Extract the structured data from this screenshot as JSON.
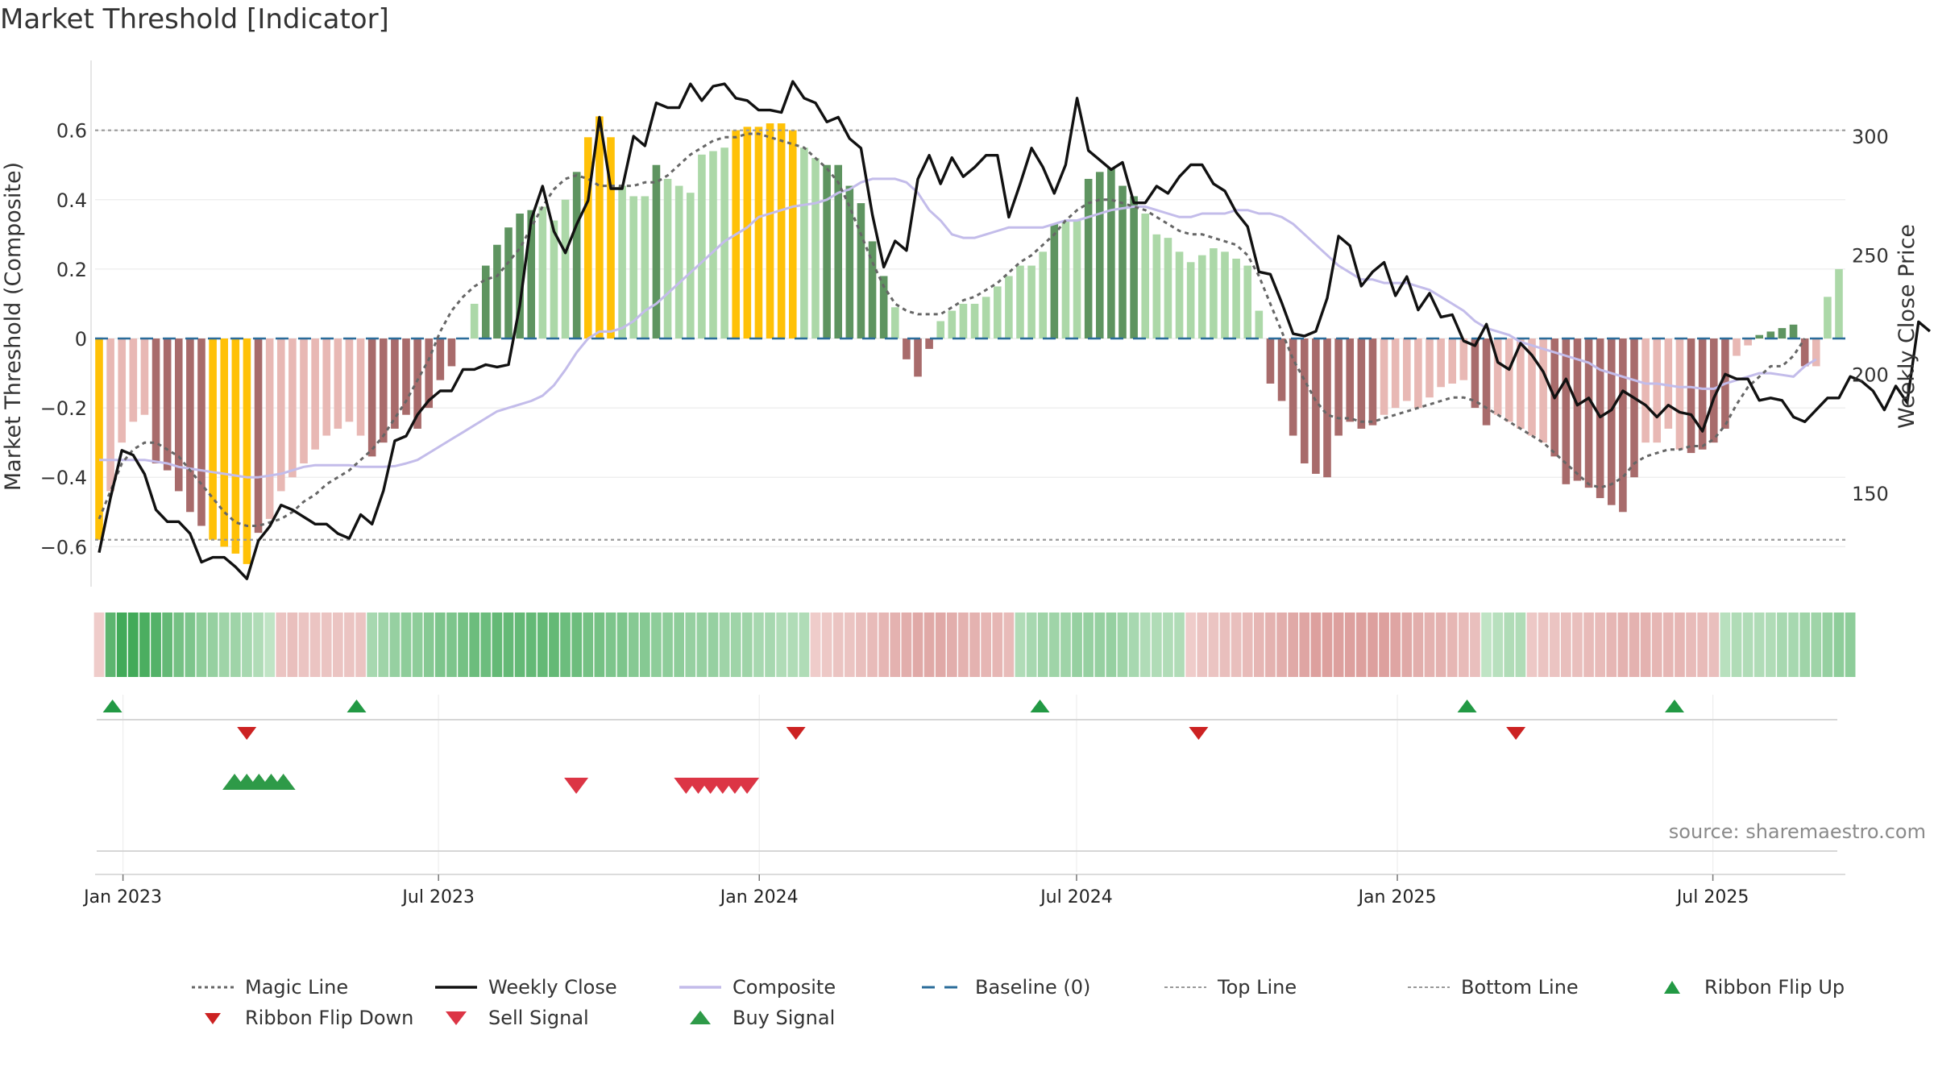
{
  "title": "Market Threshold [Indicator]",
  "source": "source: sharemaestro.com",
  "colors": {
    "neg_dark": "#a86b6b",
    "neg_light": "#e8b8b4",
    "pos_dark": "#5e9460",
    "pos_light": "#acd8a8",
    "extreme": "#ffc107",
    "close": "#111111",
    "composite": "#c3bcea",
    "magic": "#666666",
    "baseline": "#2a6c9a",
    "threshold": "#999999",
    "buy": "#2e9a48",
    "sell": "#dc3545",
    "flip_up": "#229944",
    "flip_down": "#cc2222"
  },
  "chart_data": {
    "type": "bar",
    "title": "Market Threshold [Indicator]",
    "ylabel": "Market Threshold (Composite)",
    "y2label": "Weekly Close Price",
    "ylim": [
      -0.72,
      0.72
    ],
    "y2lim": [
      110,
      320
    ],
    "yticks": [
      0.6,
      0.4,
      0.2,
      0,
      -0.2,
      -0.4,
      -0.6
    ],
    "ytick_labels": [
      "0.6",
      "0.4",
      "0.2",
      "0",
      "−0.2",
      "−0.4",
      "−0.6"
    ],
    "y2ticks": [
      300,
      250,
      200,
      150
    ],
    "x_range": [
      "2022-12-16",
      "2025-09-15"
    ],
    "xticks": [
      {
        "date": "2023-01-01",
        "label": "Jan 2023"
      },
      {
        "date": "2023-07-01",
        "label": "Jul 2023"
      },
      {
        "date": "2024-01-01",
        "label": "Jan 2024"
      },
      {
        "date": "2024-07-01",
        "label": "Jul 2024"
      },
      {
        "date": "2025-01-01",
        "label": "Jan 2025"
      },
      {
        "date": "2025-07-01",
        "label": "Jul 2025"
      }
    ],
    "top_line": 0.6,
    "bottom_line": -0.58,
    "baseline": 0,
    "composite_bars": [
      -0.58,
      -0.44,
      -0.3,
      -0.24,
      -0.22,
      -0.36,
      -0.38,
      -0.44,
      -0.5,
      -0.54,
      -0.58,
      -0.6,
      -0.62,
      -0.65,
      -0.56,
      -0.52,
      -0.44,
      -0.4,
      -0.36,
      -0.32,
      -0.28,
      -0.26,
      -0.24,
      -0.28,
      -0.34,
      -0.3,
      -0.26,
      -0.22,
      -0.26,
      -0.2,
      -0.12,
      -0.08,
      0.0,
      0.1,
      0.21,
      0.27,
      0.32,
      0.36,
      0.37,
      0.38,
      0.34,
      0.4,
      0.48,
      0.58,
      0.64,
      0.58,
      0.44,
      0.41,
      0.41,
      0.5,
      0.46,
      0.44,
      0.42,
      0.53,
      0.54,
      0.55,
      0.6,
      0.61,
      0.61,
      0.62,
      0.62,
      0.6,
      0.55,
      0.52,
      0.5,
      0.5,
      0.44,
      0.39,
      0.28,
      0.18,
      0.09,
      -0.06,
      -0.11,
      -0.03,
      0.05,
      0.08,
      0.1,
      0.1,
      0.12,
      0.15,
      0.18,
      0.21,
      0.21,
      0.25,
      0.33,
      0.34,
      0.34,
      0.46,
      0.48,
      0.49,
      0.44,
      0.41,
      0.36,
      0.3,
      0.29,
      0.25,
      0.22,
      0.24,
      0.26,
      0.25,
      0.23,
      0.21,
      0.08,
      -0.13,
      -0.18,
      -0.28,
      -0.36,
      -0.39,
      -0.4,
      -0.28,
      -0.24,
      -0.26,
      -0.25,
      -0.22,
      -0.2,
      -0.18,
      -0.2,
      -0.17,
      -0.14,
      -0.13,
      -0.12,
      -0.2,
      -0.25,
      -0.22,
      -0.24,
      -0.26,
      -0.28,
      -0.3,
      -0.34,
      -0.42,
      -0.41,
      -0.43,
      -0.46,
      -0.48,
      -0.5,
      -0.4,
      -0.3,
      -0.3,
      -0.26,
      -0.32,
      -0.33,
      -0.32,
      -0.3,
      -0.26,
      -0.05,
      -0.02,
      0.01,
      0.02,
      0.03,
      0.04,
      -0.08,
      -0.08,
      0.12,
      0.2
    ],
    "composite_line": [
      -0.35,
      -0.35,
      -0.35,
      -0.35,
      -0.35,
      -0.355,
      -0.36,
      -0.37,
      -0.375,
      -0.38,
      -0.385,
      -0.39,
      -0.395,
      -0.4,
      -0.4,
      -0.395,
      -0.39,
      -0.38,
      -0.37,
      -0.365,
      -0.365,
      -0.365,
      -0.365,
      -0.37,
      -0.37,
      -0.37,
      -0.368,
      -0.36,
      -0.35,
      -0.33,
      -0.31,
      -0.29,
      -0.27,
      -0.25,
      -0.23,
      -0.21,
      -0.2,
      -0.19,
      -0.18,
      -0.165,
      -0.135,
      -0.09,
      -0.04,
      0.0,
      0.02,
      0.02,
      0.03,
      0.05,
      0.08,
      0.1,
      0.13,
      0.16,
      0.19,
      0.22,
      0.25,
      0.28,
      0.3,
      0.32,
      0.35,
      0.36,
      0.37,
      0.38,
      0.385,
      0.39,
      0.4,
      0.42,
      0.43,
      0.45,
      0.46,
      0.46,
      0.46,
      0.45,
      0.42,
      0.37,
      0.34,
      0.3,
      0.29,
      0.29,
      0.3,
      0.31,
      0.32,
      0.32,
      0.32,
      0.32,
      0.33,
      0.34,
      0.34,
      0.35,
      0.36,
      0.37,
      0.375,
      0.38,
      0.38,
      0.37,
      0.36,
      0.35,
      0.35,
      0.36,
      0.36,
      0.36,
      0.37,
      0.37,
      0.36,
      0.36,
      0.35,
      0.33,
      0.3,
      0.27,
      0.24,
      0.21,
      0.19,
      0.17,
      0.17,
      0.16,
      0.16,
      0.16,
      0.15,
      0.14,
      0.12,
      0.1,
      0.08,
      0.05,
      0.03,
      0.02,
      0.01,
      -0.01,
      -0.02,
      -0.03,
      -0.04,
      -0.05,
      -0.06,
      -0.07,
      -0.09,
      -0.1,
      -0.11,
      -0.12,
      -0.13,
      -0.13,
      -0.135,
      -0.14,
      -0.14,
      -0.145,
      -0.145,
      -0.13,
      -0.12,
      -0.11,
      -0.1,
      -0.1,
      -0.105,
      -0.11,
      -0.08,
      -0.06
    ],
    "magic_line": [
      -0.52,
      -0.44,
      -0.36,
      -0.32,
      -0.3,
      -0.3,
      -0.32,
      -0.34,
      -0.38,
      -0.42,
      -0.46,
      -0.5,
      -0.53,
      -0.54,
      -0.54,
      -0.53,
      -0.52,
      -0.5,
      -0.47,
      -0.45,
      -0.42,
      -0.4,
      -0.38,
      -0.35,
      -0.32,
      -0.28,
      -0.23,
      -0.18,
      -0.12,
      -0.06,
      0.02,
      0.08,
      0.12,
      0.15,
      0.17,
      0.18,
      0.22,
      0.26,
      0.32,
      0.38,
      0.43,
      0.46,
      0.47,
      0.46,
      0.44,
      0.44,
      0.44,
      0.44,
      0.45,
      0.45,
      0.47,
      0.5,
      0.53,
      0.55,
      0.57,
      0.58,
      0.58,
      0.59,
      0.59,
      0.58,
      0.57,
      0.56,
      0.55,
      0.52,
      0.49,
      0.45,
      0.38,
      0.3,
      0.22,
      0.15,
      0.1,
      0.08,
      0.07,
      0.07,
      0.07,
      0.09,
      0.11,
      0.12,
      0.14,
      0.16,
      0.19,
      0.22,
      0.24,
      0.27,
      0.3,
      0.34,
      0.37,
      0.39,
      0.4,
      0.4,
      0.39,
      0.38,
      0.37,
      0.35,
      0.33,
      0.31,
      0.3,
      0.3,
      0.29,
      0.28,
      0.27,
      0.24,
      0.18,
      0.1,
      0.02,
      -0.06,
      -0.12,
      -0.18,
      -0.22,
      -0.23,
      -0.23,
      -0.24,
      -0.24,
      -0.23,
      -0.22,
      -0.21,
      -0.2,
      -0.19,
      -0.18,
      -0.17,
      -0.17,
      -0.18,
      -0.2,
      -0.22,
      -0.24,
      -0.26,
      -0.28,
      -0.3,
      -0.33,
      -0.36,
      -0.39,
      -0.42,
      -0.43,
      -0.42,
      -0.4,
      -0.36,
      -0.34,
      -0.33,
      -0.32,
      -0.32,
      -0.31,
      -0.31,
      -0.29,
      -0.25,
      -0.19,
      -0.14,
      -0.11,
      -0.08,
      -0.08,
      -0.05,
      0.0
    ],
    "weekly_close": [
      125,
      148,
      168,
      166,
      158,
      143,
      138,
      138,
      133,
      121,
      123,
      123,
      119,
      114,
      130,
      136,
      145,
      143,
      140,
      137,
      137,
      133,
      131,
      141,
      137,
      151,
      172,
      174,
      183,
      189,
      193,
      193,
      202,
      202,
      204,
      203,
      204,
      229,
      265,
      279,
      260,
      251,
      263,
      273,
      308,
      278,
      278,
      300,
      296,
      314,
      312,
      312,
      322,
      315,
      321,
      322,
      316,
      315,
      311,
      311,
      310,
      323,
      316,
      314,
      306,
      308,
      299,
      295,
      267,
      245,
      256,
      252,
      282,
      292,
      280,
      291,
      283,
      287,
      292,
      292,
      266,
      280,
      295,
      287,
      276,
      288,
      316,
      294,
      290,
      286,
      289,
      272,
      272,
      279,
      276,
      283,
      288,
      288,
      280,
      277,
      268,
      262,
      243,
      242,
      230,
      217,
      216,
      218,
      232,
      258,
      254,
      237,
      243,
      247,
      233,
      241,
      227,
      234,
      224,
      225,
      214,
      212,
      221,
      205,
      202,
      213,
      208,
      201,
      190,
      198,
      187,
      190,
      182,
      185,
      193,
      190,
      187,
      182,
      187,
      184,
      183,
      176,
      190,
      200,
      198,
      198,
      189,
      190,
      189,
      182,
      180,
      185,
      190,
      190,
      199,
      197,
      193,
      185,
      195,
      188,
      222,
      218
    ],
    "ribbon_strength": [
      -0.2,
      0.8,
      0.95,
      0.95,
      0.9,
      0.85,
      0.75,
      0.65,
      0.6,
      0.5,
      0.45,
      0.4,
      0.4,
      0.35,
      0.3,
      0.2,
      -0.3,
      -0.35,
      -0.3,
      -0.3,
      -0.3,
      -0.3,
      -0.3,
      -0.3,
      0.35,
      0.4,
      0.45,
      0.5,
      0.5,
      0.55,
      0.6,
      0.6,
      0.65,
      0.7,
      0.7,
      0.75,
      0.75,
      0.75,
      0.75,
      0.75,
      0.75,
      0.7,
      0.7,
      0.65,
      0.65,
      0.6,
      0.6,
      0.55,
      0.55,
      0.5,
      0.5,
      0.5,
      0.45,
      0.45,
      0.45,
      0.4,
      0.4,
      0.4,
      0.35,
      0.35,
      0.3,
      0.3,
      0.3,
      -0.2,
      -0.25,
      -0.3,
      -0.3,
      -0.35,
      -0.4,
      -0.45,
      -0.5,
      -0.55,
      -0.6,
      -0.6,
      -0.6,
      -0.55,
      -0.5,
      -0.5,
      -0.45,
      -0.45,
      -0.4,
      0.3,
      0.35,
      0.4,
      0.4,
      0.4,
      0.45,
      0.45,
      0.45,
      0.45,
      0.4,
      0.35,
      0.3,
      0.3,
      0.3,
      0.3,
      -0.2,
      -0.3,
      -0.3,
      -0.35,
      -0.35,
      -0.4,
      -0.45,
      -0.5,
      -0.55,
      -0.6,
      -0.65,
      -0.7,
      -0.7,
      -0.7,
      -0.7,
      -0.7,
      -0.7,
      -0.7,
      -0.65,
      -0.6,
      -0.55,
      -0.5,
      -0.5,
      -0.45,
      -0.4,
      -0.35,
      0.2,
      0.25,
      0.3,
      0.3,
      -0.25,
      -0.3,
      -0.3,
      -0.35,
      -0.35,
      -0.4,
      -0.4,
      -0.45,
      -0.5,
      -0.5,
      -0.5,
      -0.45,
      -0.45,
      -0.45,
      -0.4,
      -0.4,
      -0.35,
      0.25,
      0.3,
      0.3,
      0.3,
      0.3,
      0.35,
      0.35,
      0.4,
      0.4,
      0.45,
      0.5,
      0.5
    ],
    "ribbon_flip_up": [
      "2022-12-26",
      "2023-05-15",
      "2024-06-10",
      "2025-02-10",
      "2025-06-09"
    ],
    "ribbon_flip_down": [
      "2023-03-13",
      "2024-01-22",
      "2024-09-09",
      "2025-03-10"
    ],
    "buy_signals": [
      "2023-03-06",
      "2023-03-13",
      "2023-03-20",
      "2023-03-27",
      "2023-04-03"
    ],
    "sell_signals": [
      "2023-09-18",
      "2023-11-20",
      "2023-11-27",
      "2023-12-04",
      "2023-12-11",
      "2023-12-18",
      "2023-12-25"
    ],
    "legend": [
      "Magic Line",
      "Weekly Close",
      "Composite",
      "Baseline (0)",
      "Top Line",
      "Bottom Line",
      "Ribbon Flip Up",
      "Ribbon Flip Down",
      "Sell Signal",
      "Buy Signal"
    ],
    "legend_placement": "bottom",
    "grid": true
  }
}
